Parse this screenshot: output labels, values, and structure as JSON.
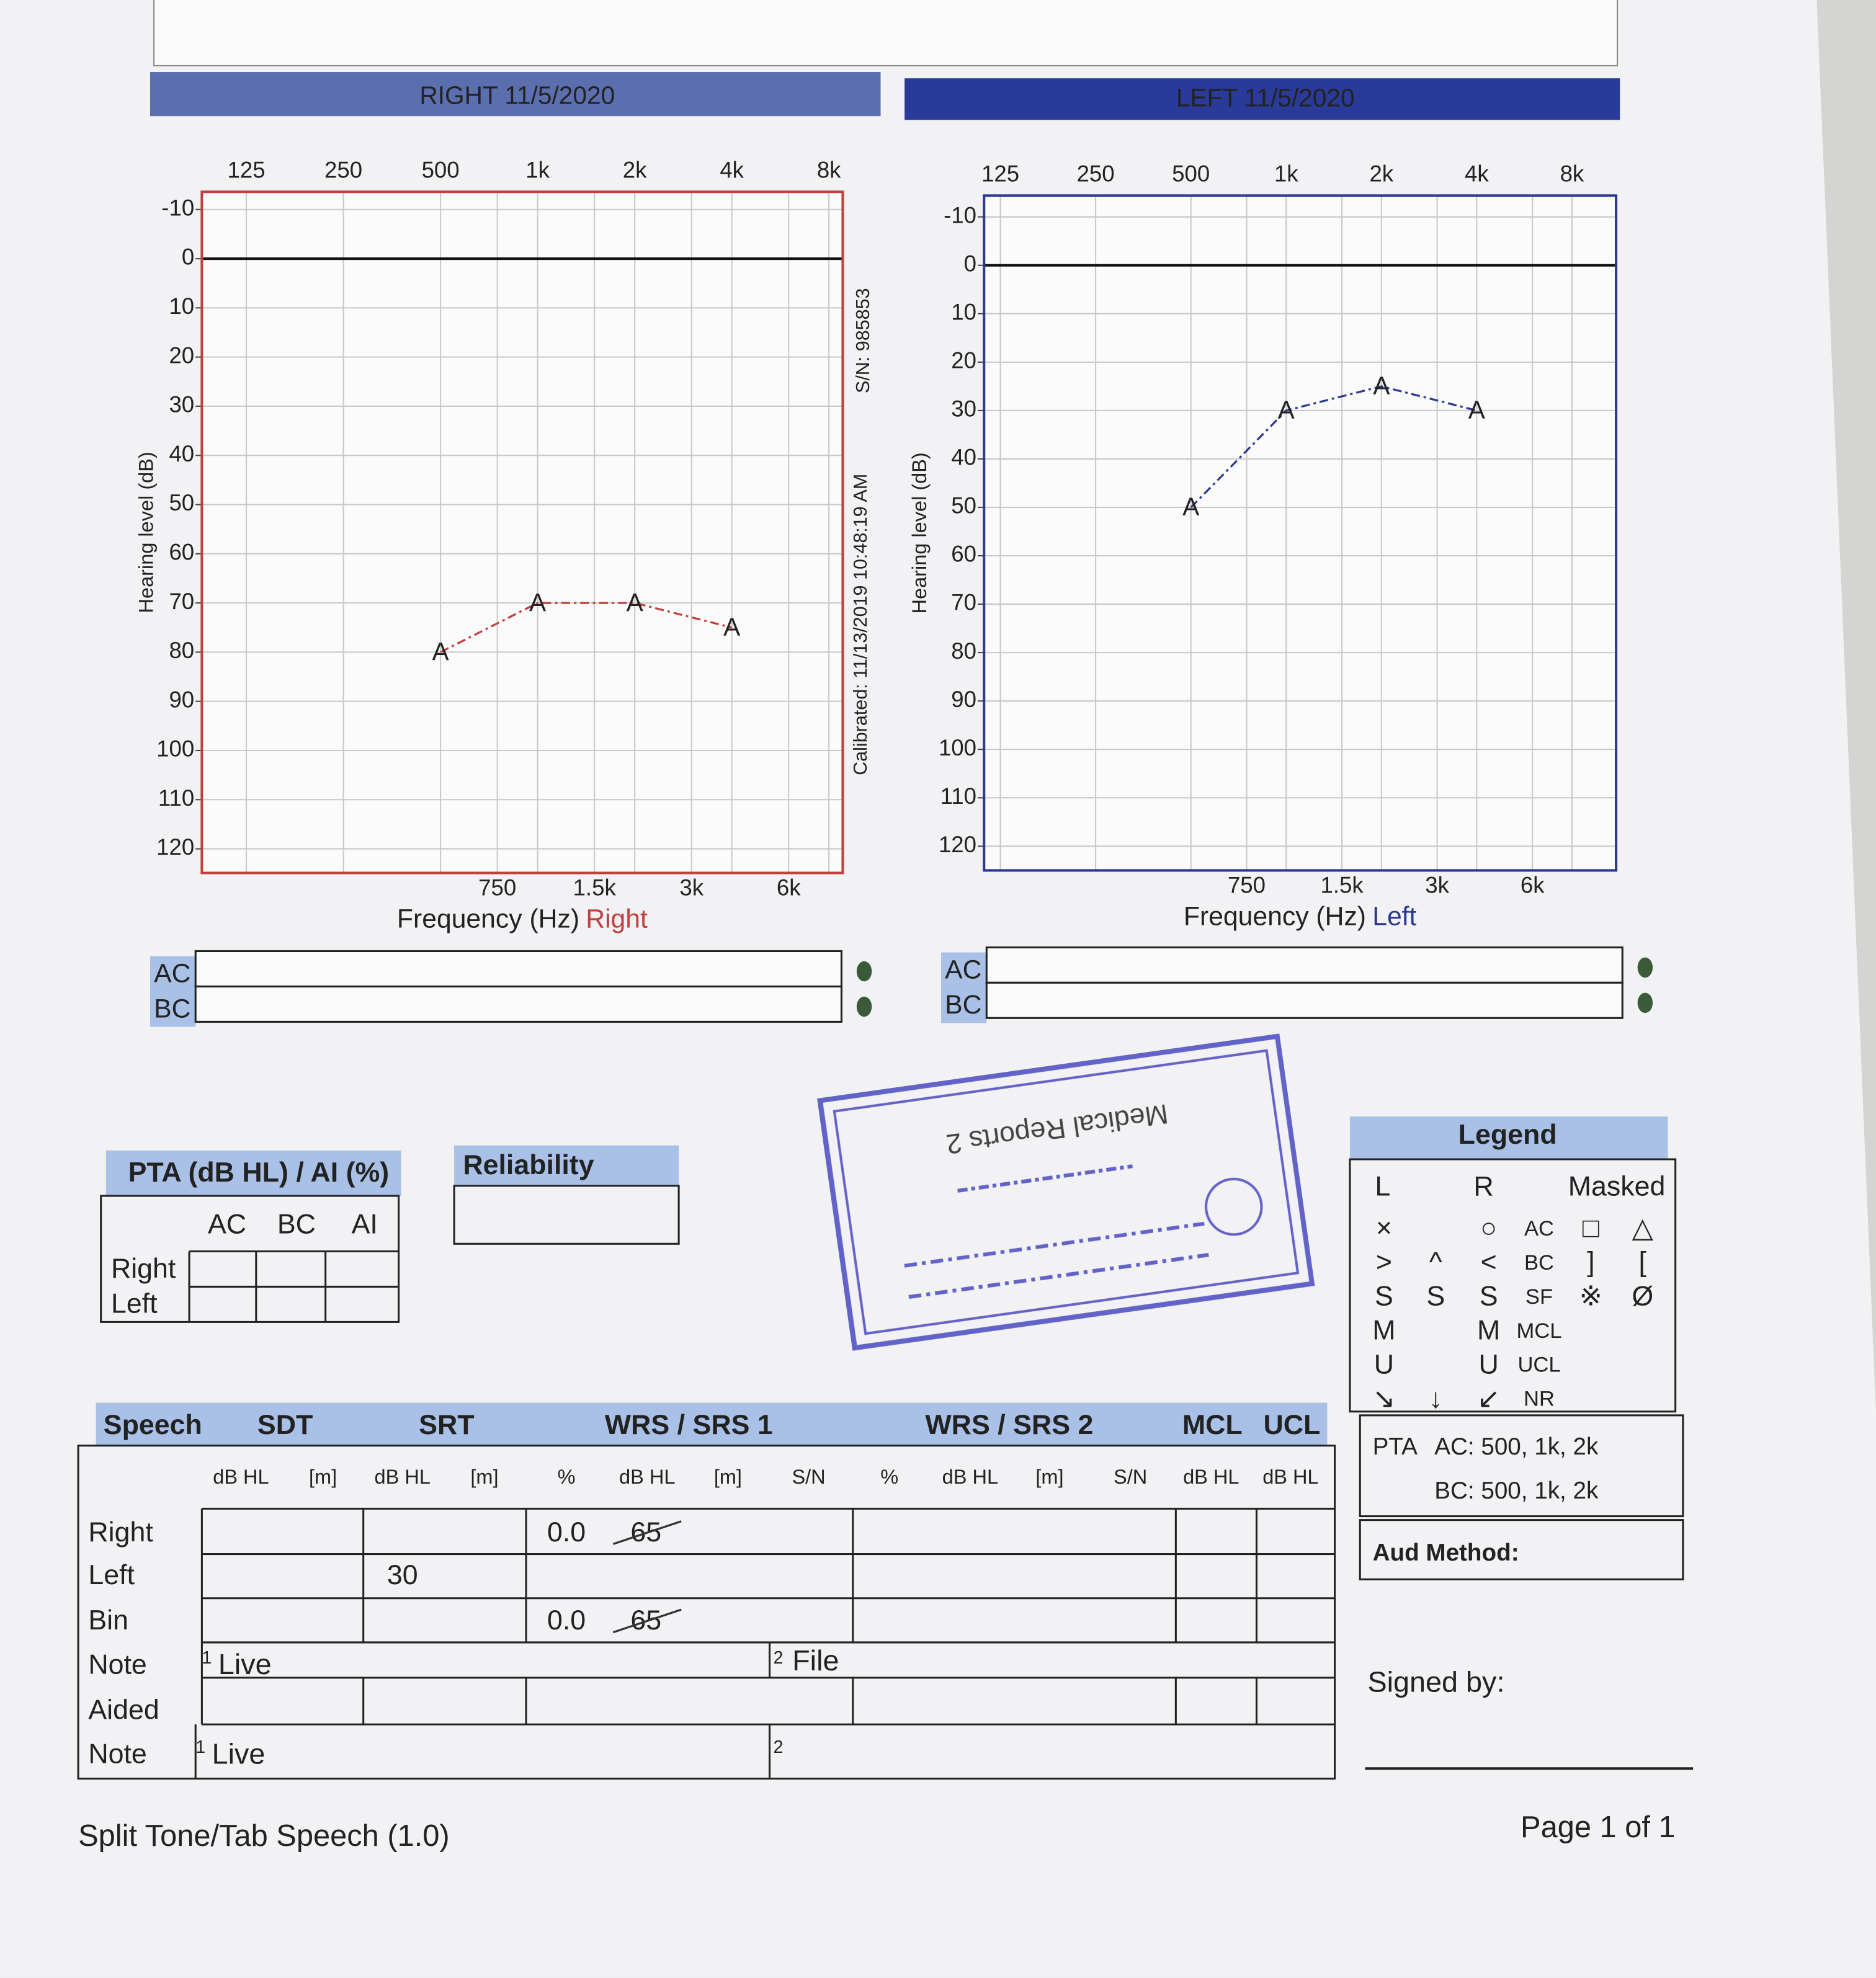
{
  "chart_data": [
    {
      "type": "line",
      "title": "RIGHT  11/5/2020",
      "x_label": "Frequency (Hz)",
      "x_label_ear": "Right",
      "y_label": "Hearing level (dB)",
      "serial": "S/N: 985853",
      "calibrated": "Calibrated: 11/13/2019 10:48:19 AM",
      "xscale": "log",
      "xlim": [
        91,
        8830
      ],
      "xticks": [
        125,
        250,
        500,
        {
          "value": 1000,
          "label": "1k"
        },
        {
          "value": 2000,
          "label": "2k"
        },
        {
          "value": 4000,
          "label": "4k"
        },
        {
          "value": 8000,
          "label": "8k"
        }
      ],
      "x2ticks": [
        750,
        {
          "value": 1500,
          "label": "1.5k"
        },
        {
          "value": 3000,
          "label": "3k"
        },
        {
          "value": 6000,
          "label": "6k"
        }
      ],
      "ylim": [
        -13.6,
        124.9
      ],
      "y_inverted": true,
      "yticks": [
        -10,
        0,
        10,
        20,
        30,
        40,
        50,
        60,
        70,
        80,
        90,
        100,
        110,
        120
      ],
      "grid": true,
      "x": [
        500,
        1000,
        2000,
        4000
      ],
      "series": [
        {
          "color": "#c0403c",
          "marker": "A",
          "values": [
            80,
            70,
            70,
            75
          ]
        }
      ]
    },
    {
      "type": "line",
      "title": "LEFT  11/5/2020",
      "x_label": "Frequency (Hz)",
      "x_label_ear": "Left",
      "y_label": "Hearing level (dB)",
      "xscale": "log",
      "xlim": [
        111,
        11030
      ],
      "xticks": [
        125,
        250,
        500,
        {
          "value": 1000,
          "label": "1k"
        },
        {
          "value": 2000,
          "label": "2k"
        },
        {
          "value": 4000,
          "label": "4k"
        },
        {
          "value": 8000,
          "label": "8k"
        }
      ],
      "x2ticks": [
        750,
        {
          "value": 1500,
          "label": "1.5k"
        },
        {
          "value": 3000,
          "label": "3k"
        },
        {
          "value": 6000,
          "label": "6k"
        }
      ],
      "ylim": [
        -14.4,
        125
      ],
      "y_inverted": true,
      "yticks": [
        -10,
        0,
        10,
        20,
        30,
        40,
        50,
        60,
        70,
        80,
        90,
        100,
        110,
        120
      ],
      "grid": true,
      "x": [
        500,
        1000,
        2000,
        4000
      ],
      "series": [
        {
          "color": "#2b3990",
          "marker": "A",
          "values": [
            50,
            30,
            25,
            30
          ]
        }
      ]
    }
  ],
  "document": {
    "right_boxes": [
      "AC",
      "BC"
    ],
    "left_boxes": [
      "AC",
      "BC"
    ],
    "pta": {
      "title": "PTA (dB HL) / AI (%)",
      "columns": [
        "AC",
        "BC",
        "AI"
      ],
      "rows": [
        "Right",
        "Left"
      ]
    },
    "reliability": {
      "title": "Reliability"
    },
    "stamp": {
      "text": "Medical Reports 2"
    },
    "legend": {
      "title": "Legend",
      "columns": [
        "L",
        "R",
        "Masked"
      ],
      "rows": [
        [
          "×",
          null,
          "○",
          "AC",
          "□",
          "△"
        ],
        [
          ">",
          "^",
          "<",
          "BC",
          "]",
          "["
        ],
        [
          "S",
          "S",
          "S",
          "SF",
          "※",
          "Ø"
        ],
        [
          "M",
          null,
          "M",
          "MCL",
          null,
          null
        ],
        [
          "U",
          null,
          "U",
          "UCL",
          null,
          null
        ],
        [
          "↘",
          "↓",
          "↙",
          "NR",
          null,
          null
        ]
      ],
      "pta_label": "PTA",
      "pta_ac": "AC: 500, 1k, 2k",
      "pta_bc": "BC: 500, 1k, 2k",
      "aud_method": "Aud Method:"
    },
    "signed_by": "Signed by:",
    "speech": {
      "headers": [
        "Speech",
        "SDT",
        "SRT",
        "WRS / SRS 1",
        "WRS / SRS 2",
        "MCL",
        "UCL"
      ],
      "subheaders": [
        "dB HL",
        "[m]",
        "dB HL",
        "[m]",
        "%",
        "dB HL",
        "[m]",
        "S/N",
        "%",
        "dB HL",
        "[m]",
        "S/N",
        "dB HL",
        "dB HL"
      ],
      "rows": [
        {
          "label": "Right",
          "wrs1_percent": "0.0",
          "wrs1_db_hl": "65"
        },
        {
          "label": "Left",
          "srt_db_hl": "30"
        },
        {
          "label": "Bin",
          "wrs1_percent": "0.0",
          "wrs1_db_hl": "65"
        },
        {
          "label": "Note",
          "note1_mark": "1",
          "note1": "Live",
          "note2_mark": "2",
          "note2": "File"
        },
        {
          "label": "Aided"
        },
        {
          "label": "Note",
          "note1_mark": "1",
          "note1": "Live",
          "note2_mark": "2"
        }
      ]
    },
    "footer": {
      "form": "Split Tone/Tab Speech (1.0)",
      "page": "Page 1 of 1"
    }
  }
}
